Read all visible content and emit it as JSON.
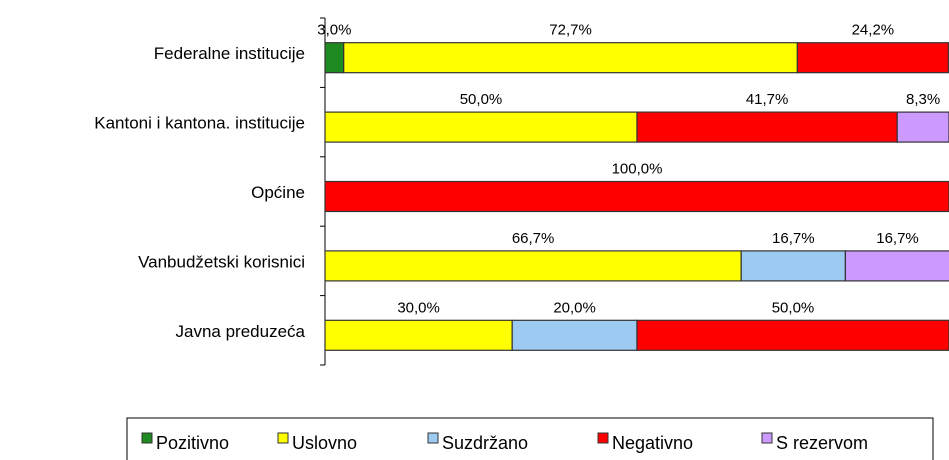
{
  "chart_data": {
    "type": "stacked-bar-horizontal",
    "categories": [
      "Federalne institucije",
      "Kantoni i kantona. institucije",
      "Općine",
      "Vanbudžetski korisnici",
      "Javna preduzeća"
    ],
    "series": [
      {
        "name": "Pozitivno",
        "color": "#1f8a1f",
        "values": [
          3.0,
          0,
          0,
          0,
          0
        ],
        "value_labels": [
          "3,0%",
          null,
          null,
          null,
          null
        ]
      },
      {
        "name": "Uslovno",
        "color": "#ffff00",
        "values": [
          72.7,
          50.0,
          0,
          66.7,
          30.0
        ],
        "value_labels": [
          "72,7%",
          "50,0%",
          null,
          "66,7%",
          "30,0%"
        ]
      },
      {
        "name": "Suzdržano",
        "color": "#9ccaf0",
        "values": [
          0,
          0,
          0,
          16.7,
          20.0
        ],
        "value_labels": [
          null,
          null,
          null,
          "16,7%",
          "20,0%"
        ]
      },
      {
        "name": "Negativno",
        "color": "#ff0000",
        "values": [
          24.2,
          41.7,
          100.0,
          0,
          50.0
        ],
        "value_labels": [
          "24,2%",
          "41,7%",
          "100,0%",
          null,
          "50,0%"
        ]
      },
      {
        "name": "S rezervom",
        "color": "#cc99ff",
        "values": [
          0,
          8.3,
          0,
          16.7,
          0
        ],
        "value_labels": [
          null,
          "8,3%",
          null,
          "16,7%",
          null
        ]
      }
    ],
    "xlim": [
      0,
      100
    ]
  }
}
